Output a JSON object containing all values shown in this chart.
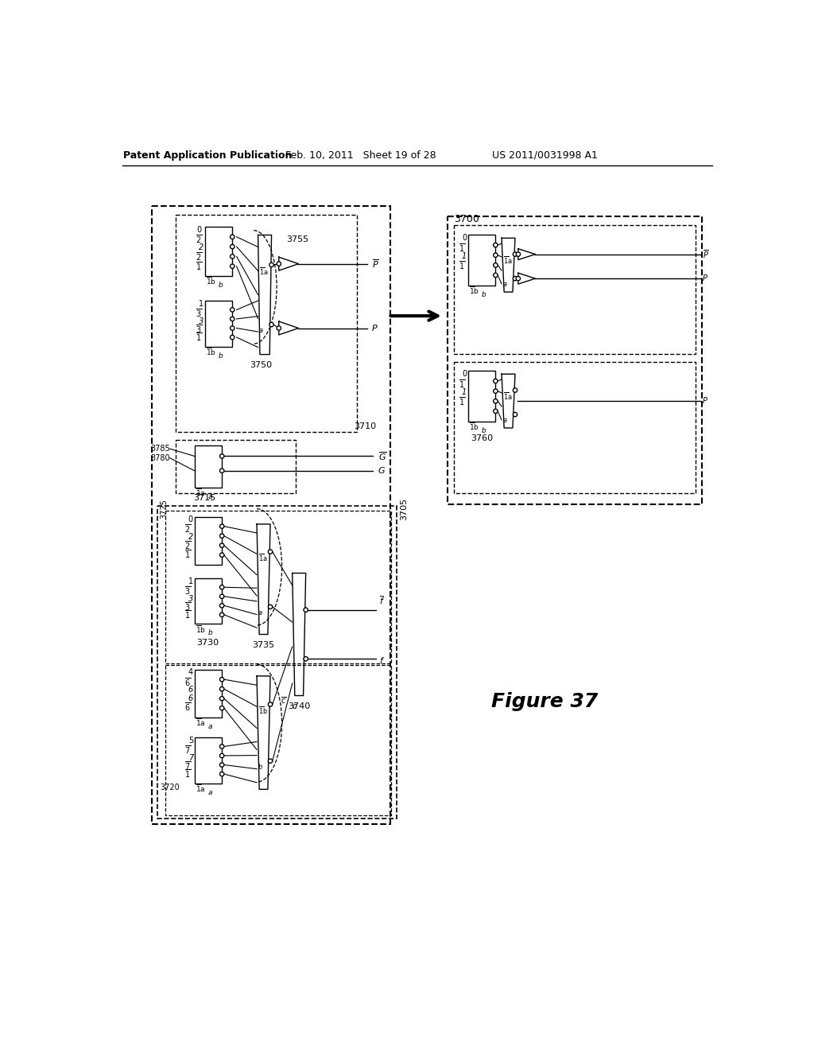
{
  "title": "Patent Application Publication",
  "date": "Feb. 10, 2011",
  "sheet": "Sheet 19 of 28",
  "patent_num": "US 2011/0031998 A1",
  "figure_label": "Figure 37",
  "bg_color": "#ffffff",
  "line_color": "#000000"
}
